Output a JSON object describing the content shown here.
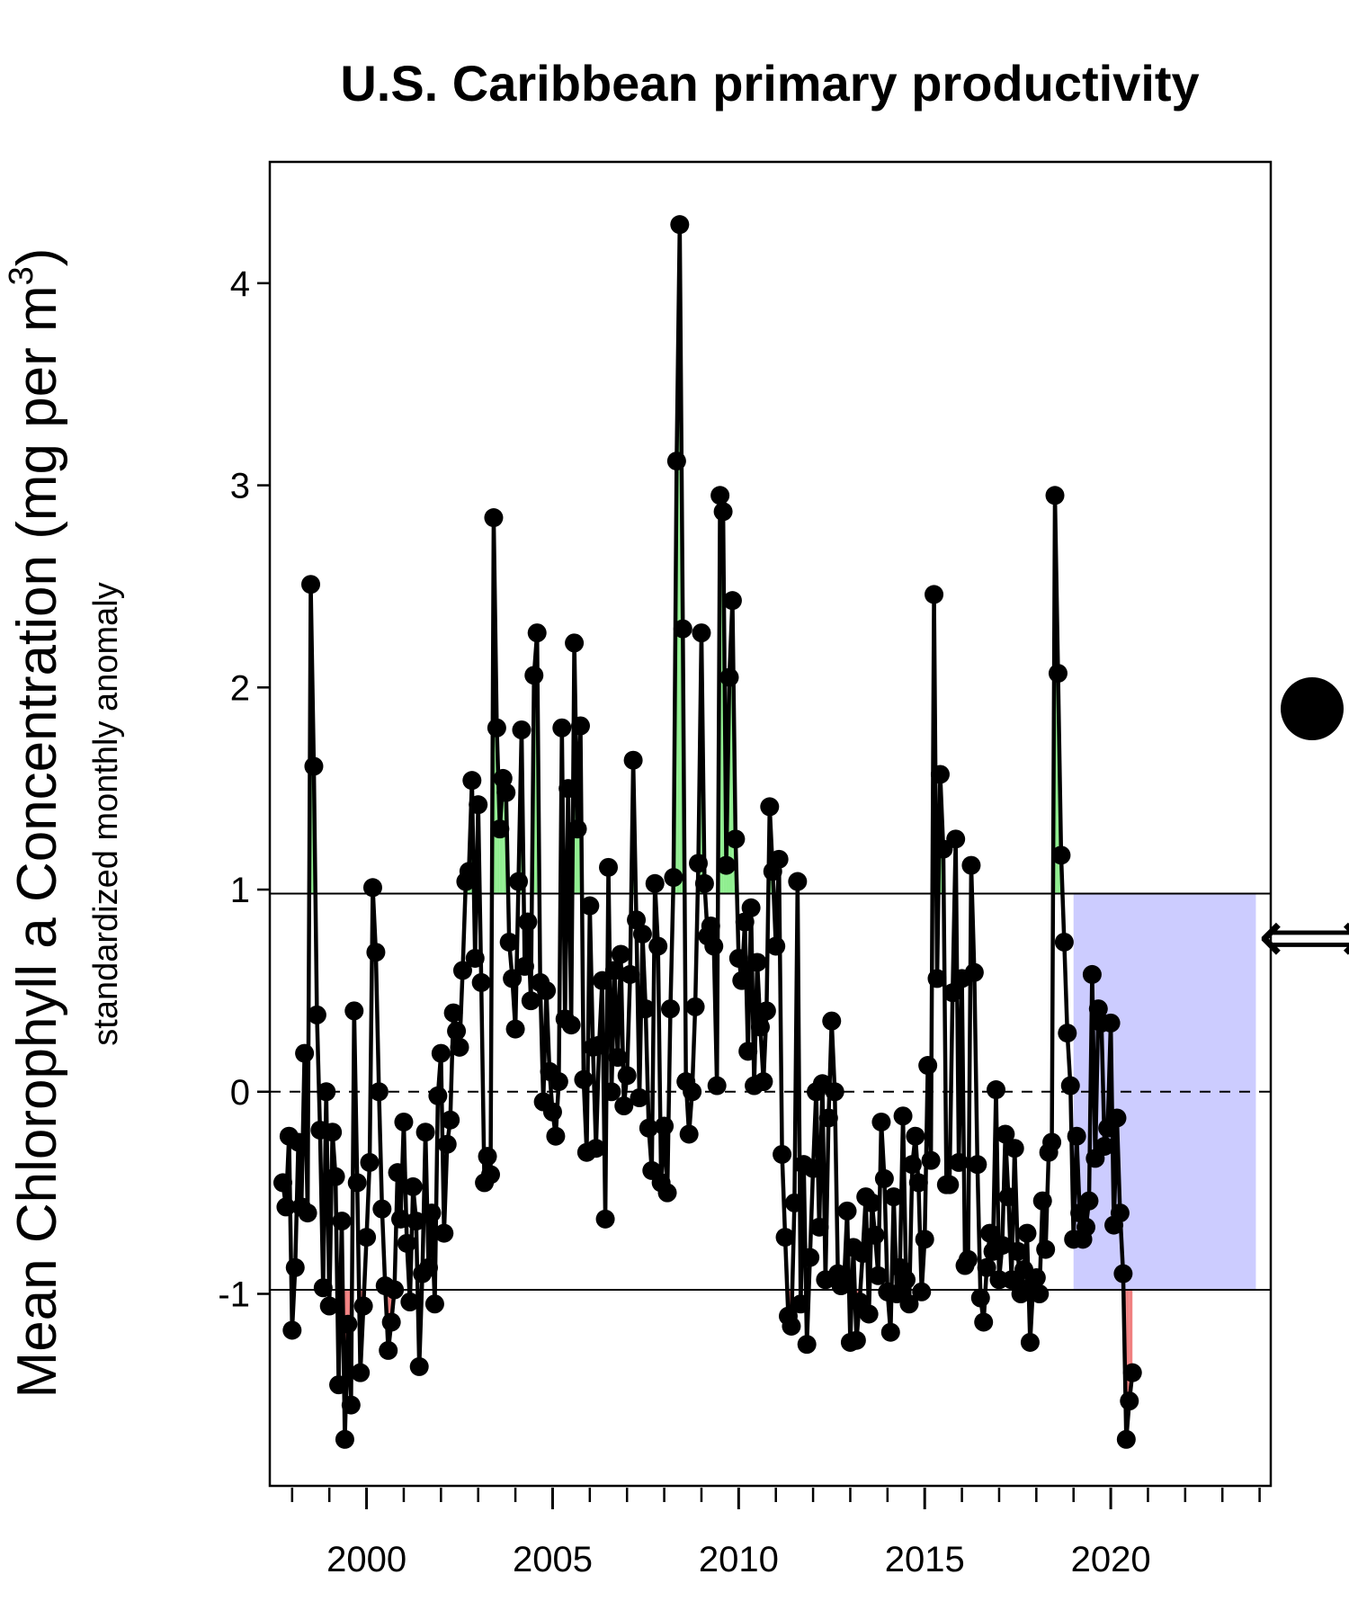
{
  "chart_data": {
    "type": "line",
    "title": "U.S. Caribbean primary productivity",
    "ylabel": "Mean Chlorophyll a Concentration (mg per m",
    "ylabel_superscript": "3",
    "ylabel_close": ")",
    "ylabel_sub": "standardized monthly anomaly",
    "xlabel": "",
    "xlim": [
      1997.4,
      2024.3
    ],
    "ylim": [
      -1.95,
      4.6
    ],
    "x_ticks": [
      2000,
      2005,
      2010,
      2015,
      2020
    ],
    "y_ticks": [
      -1,
      0,
      1,
      2,
      3,
      4
    ],
    "grid": false,
    "reference_lines": {
      "upper": 0.98,
      "mean": 0.0,
      "lower": -0.98
    },
    "highlight_period": [
      2019.0,
      2023.9
    ],
    "highlight_color": "#ccccff",
    "above_fill_color": "#90ee90",
    "below_fill_color": "#f08080",
    "series": [
      {
        "start_year": 1997.75,
        "step": 0.0833333,
        "values": [
          -0.45,
          -0.57,
          -0.22,
          -1.18,
          -0.87,
          -0.25,
          -0.57,
          0.19,
          -0.6,
          2.51,
          1.61,
          0.38,
          -0.19,
          -0.97,
          0.0,
          -1.06,
          -0.2,
          -0.42,
          -1.45,
          -0.64,
          -1.72,
          -1.15,
          -1.55,
          0.4,
          -0.45,
          -1.39,
          -1.06,
          -0.72,
          -0.35,
          1.01,
          0.69,
          0.0,
          -0.58,
          -0.96,
          -1.28,
          -1.14,
          -0.98,
          -0.4,
          -0.63,
          -0.15,
          -0.75,
          -1.04,
          -0.47,
          -0.64,
          -1.36,
          -0.9,
          -0.2,
          -0.87,
          -0.6,
          -1.05,
          -0.02,
          0.19,
          -0.7,
          -0.26,
          -0.14,
          0.39,
          0.3,
          0.22,
          0.6,
          1.04,
          1.09,
          1.54,
          0.66,
          1.42,
          0.54,
          -0.45,
          -0.32,
          -0.41,
          2.84,
          1.8,
          1.3,
          1.55,
          1.48,
          0.74,
          0.56,
          0.31,
          1.04,
          1.79,
          0.62,
          0.84,
          0.45,
          2.06,
          2.27,
          0.54,
          -0.05,
          0.5,
          0.1,
          -0.1,
          -0.22,
          0.05,
          1.8,
          0.36,
          1.5,
          0.33,
          2.22,
          1.3,
          1.81,
          0.06,
          -0.3,
          0.92,
          0.22,
          -0.28,
          0.23,
          0.55,
          -0.63,
          1.11,
          0.0,
          0.6,
          0.17,
          0.68,
          -0.07,
          0.08,
          0.58,
          1.64,
          0.85,
          -0.03,
          0.78,
          0.41,
          -0.18,
          -0.39,
          1.03,
          0.72,
          -0.45,
          -0.17,
          -0.5,
          0.41,
          1.06,
          3.12,
          4.29,
          2.29,
          0.05,
          -0.21,
          0.0,
          0.42,
          1.13,
          2.27,
          1.03,
          0.77,
          0.82,
          0.72,
          0.03,
          2.95,
          2.87,
          1.12,
          2.05,
          2.43,
          1.25,
          0.66,
          0.55,
          0.84,
          0.2,
          0.91,
          0.03,
          0.64,
          0.32,
          0.05,
          0.4,
          1.41,
          1.09,
          0.72,
          1.15,
          -0.31,
          -0.72,
          -1.11,
          -1.16,
          -0.55,
          1.04,
          -1.05,
          -0.36,
          -1.25,
          -0.82,
          -0.38,
          0.0,
          -0.67,
          0.04,
          -0.93,
          -0.13,
          0.35,
          0.0,
          -0.9,
          -0.96,
          -0.94,
          -0.59,
          -1.24,
          -0.77,
          -1.23,
          -1.04,
          -0.8,
          -0.52,
          -1.1,
          -0.55,
          -0.71,
          -0.91,
          -0.15,
          -0.43,
          -0.99,
          -1.19,
          -0.52,
          -1.0,
          -0.87,
          -0.12,
          -0.93,
          -1.05,
          -0.36,
          -0.22,
          -0.45,
          -0.99,
          -0.73,
          0.13,
          -0.34,
          2.46,
          0.56,
          1.57,
          1.2,
          -0.46,
          -0.46,
          0.49,
          1.25,
          -0.35,
          0.56,
          -0.86,
          -0.83,
          1.12,
          0.59,
          -0.36,
          -1.02,
          -1.14,
          -0.87,
          -0.7,
          -0.79,
          0.01,
          -0.93,
          -0.76,
          -0.21,
          -0.52,
          -0.93,
          -0.28,
          -0.79,
          -1.0,
          -0.88,
          -0.7,
          -1.24,
          -0.95,
          -0.92,
          -1.0,
          -0.54,
          -0.78,
          -0.3,
          -0.25,
          2.95,
          2.07,
          1.17,
          0.74,
          0.29,
          0.03,
          -0.73,
          -0.22,
          -0.6,
          -0.73,
          -0.67,
          -0.54,
          0.58,
          -0.33,
          0.41,
          0.34,
          -0.27,
          -0.18,
          0.34,
          -0.66,
          -0.13,
          -0.6,
          -0.9,
          -1.72,
          -1.53,
          -1.39
        ]
      }
    ]
  },
  "side_symbols": {
    "trend_symbol": "filled-circle-icon",
    "change_symbol": "left-right-arrow-icon",
    "change_glyph": "⟺"
  }
}
